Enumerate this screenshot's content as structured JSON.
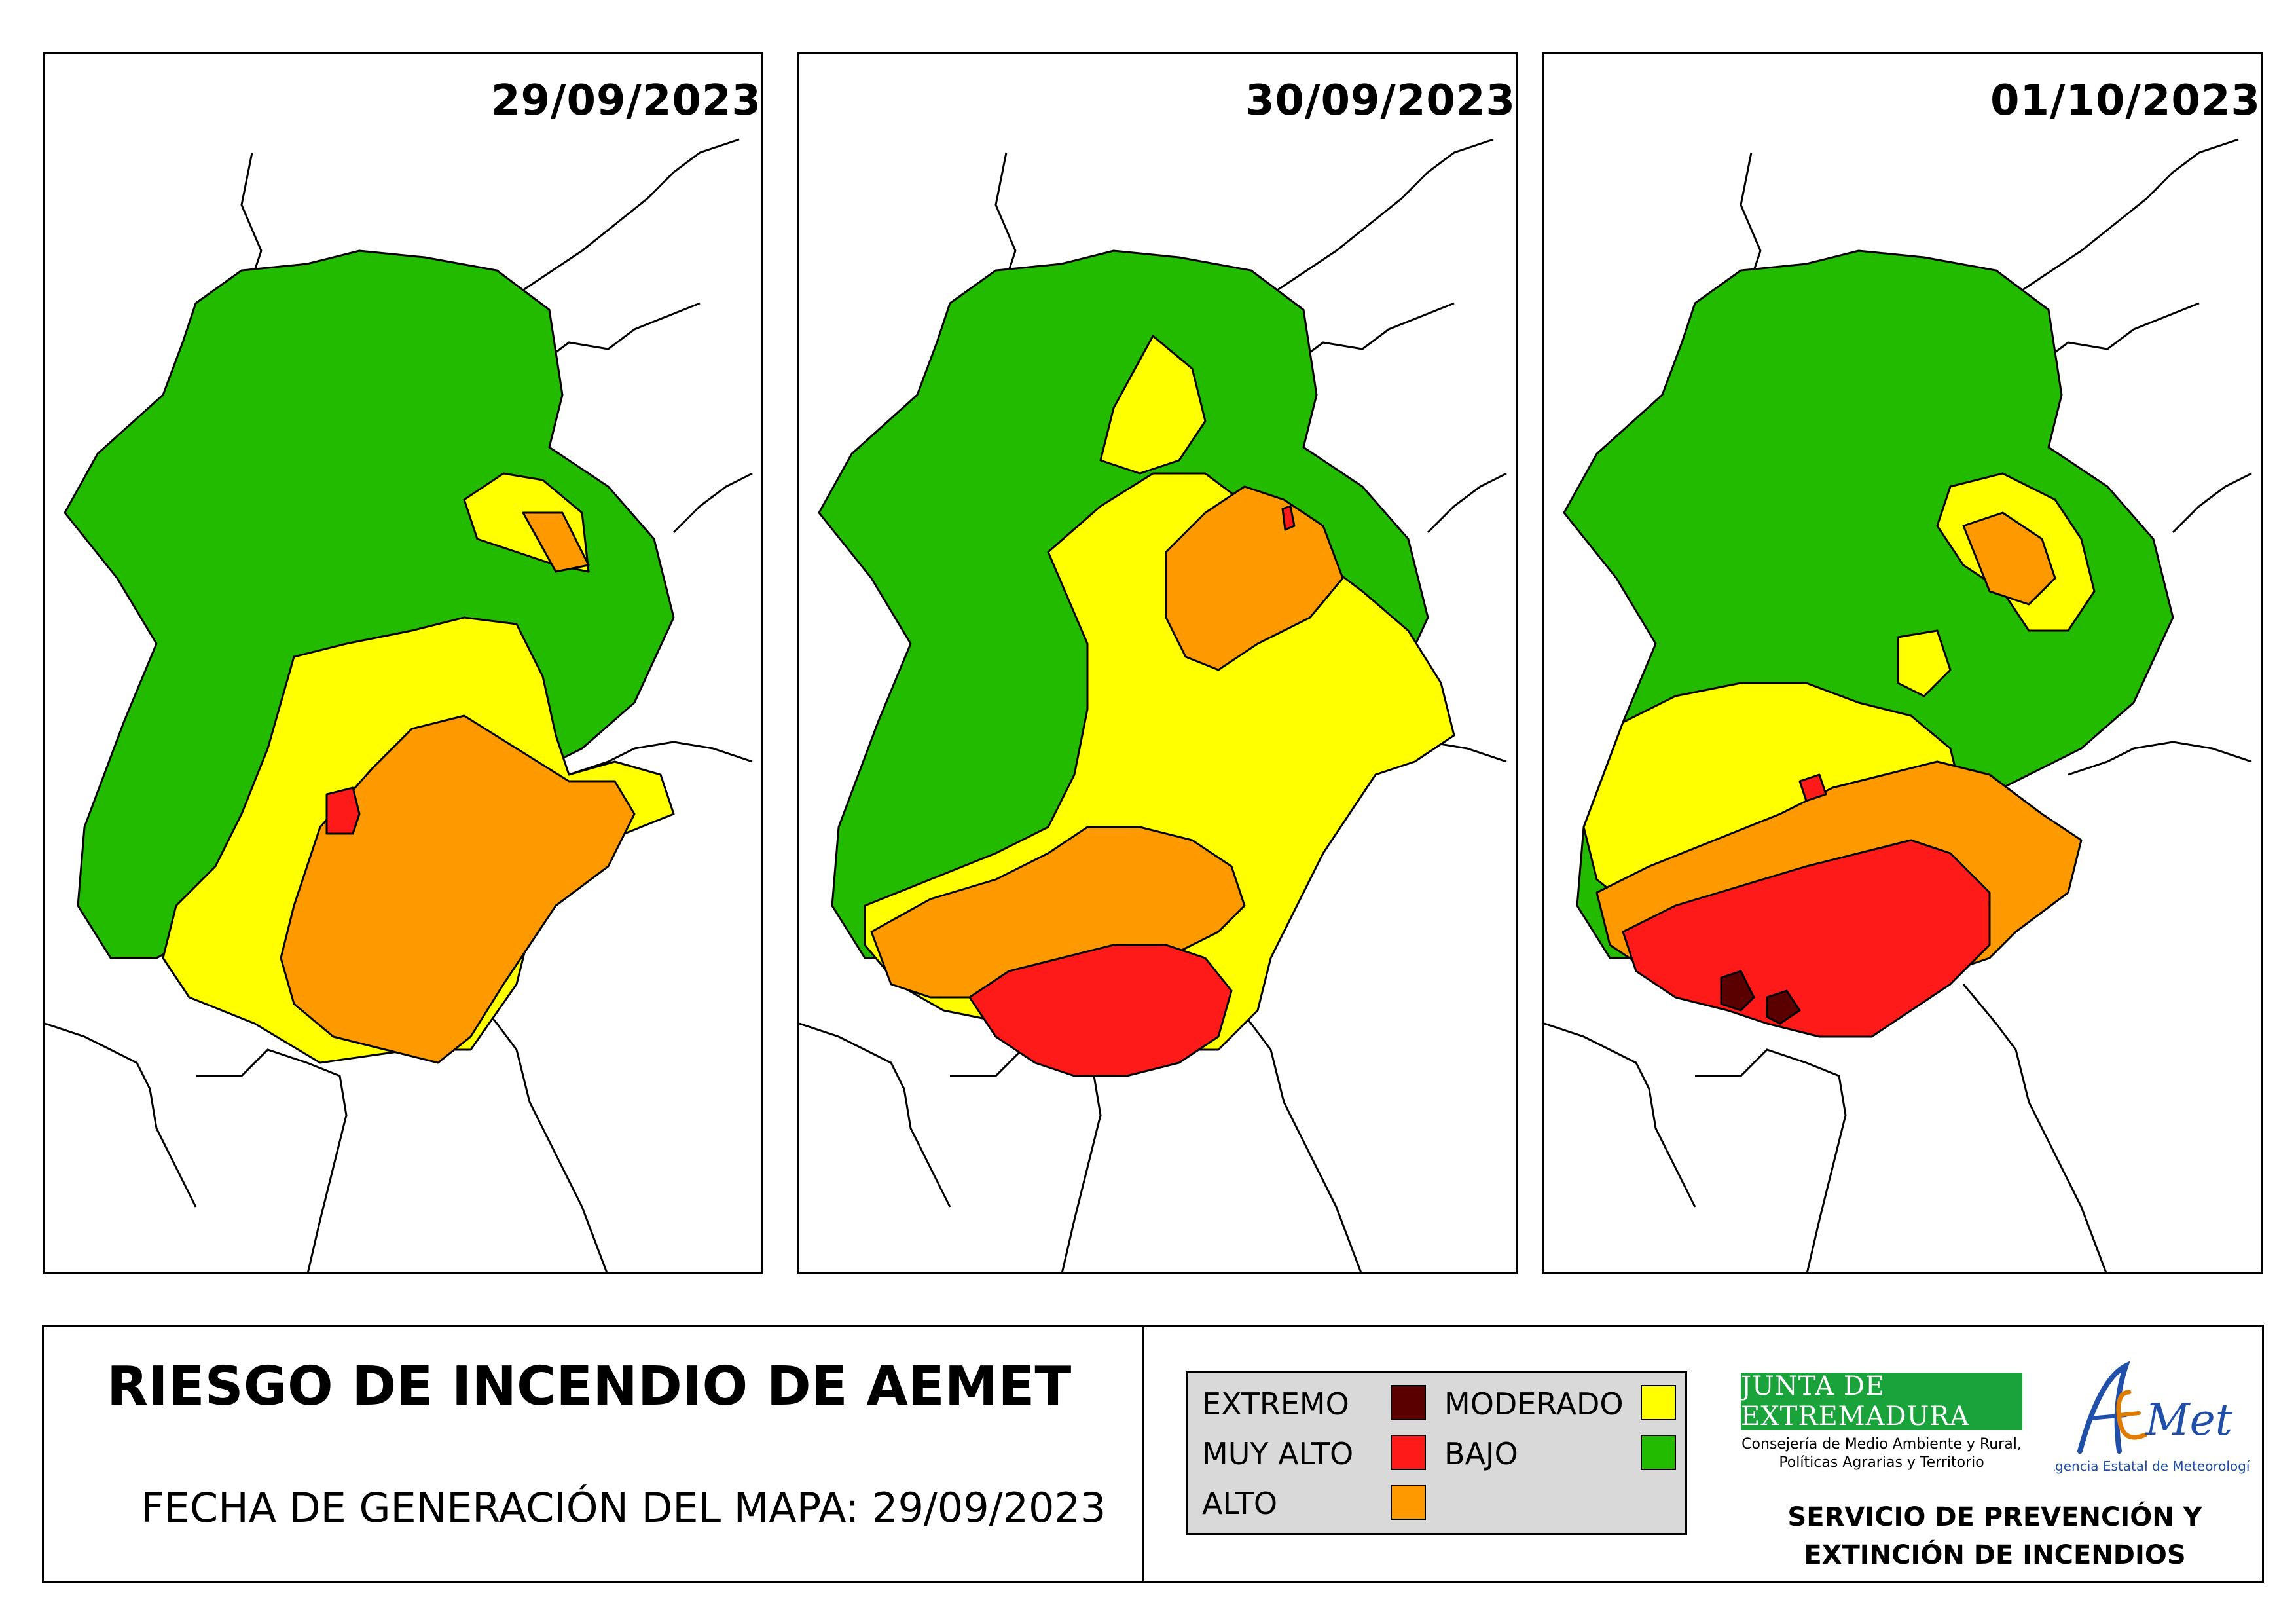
{
  "panels": [
    {
      "date": "29/09/2023"
    },
    {
      "date": "30/09/2023"
    },
    {
      "date": "01/10/2023"
    }
  ],
  "footer": {
    "title": "RIESGO DE INCENDIO DE AEMET",
    "generation_date": "FECHA DE GENERACIÓN DEL MAPA: 29/09/2023"
  },
  "legend": {
    "items": [
      {
        "label": "EXTREMO",
        "color": "#5a0000"
      },
      {
        "label": "MUY ALTO",
        "color": "#ff1a1a"
      },
      {
        "label": "ALTO",
        "color": "#ff9900"
      },
      {
        "label": "MODERADO",
        "color": "#ffff00"
      },
      {
        "label": "BAJO",
        "color": "#22bb00"
      }
    ]
  },
  "logos": {
    "junta_name": "JUNTA DE EXTREMADURA",
    "junta_sub_line1": "Consejería de Medio Ambiente y Rural,",
    "junta_sub_line2": "Políticas Agrarias y Territorio",
    "aemet_wordmark": "AEMet",
    "aemet_sub": "Agencia Estatal de Meteorología"
  },
  "service": {
    "line1": "SERVICIO DE PREVENCIÓN Y",
    "line2": "EXTINCIÓN DE INCENDIOS"
  }
}
